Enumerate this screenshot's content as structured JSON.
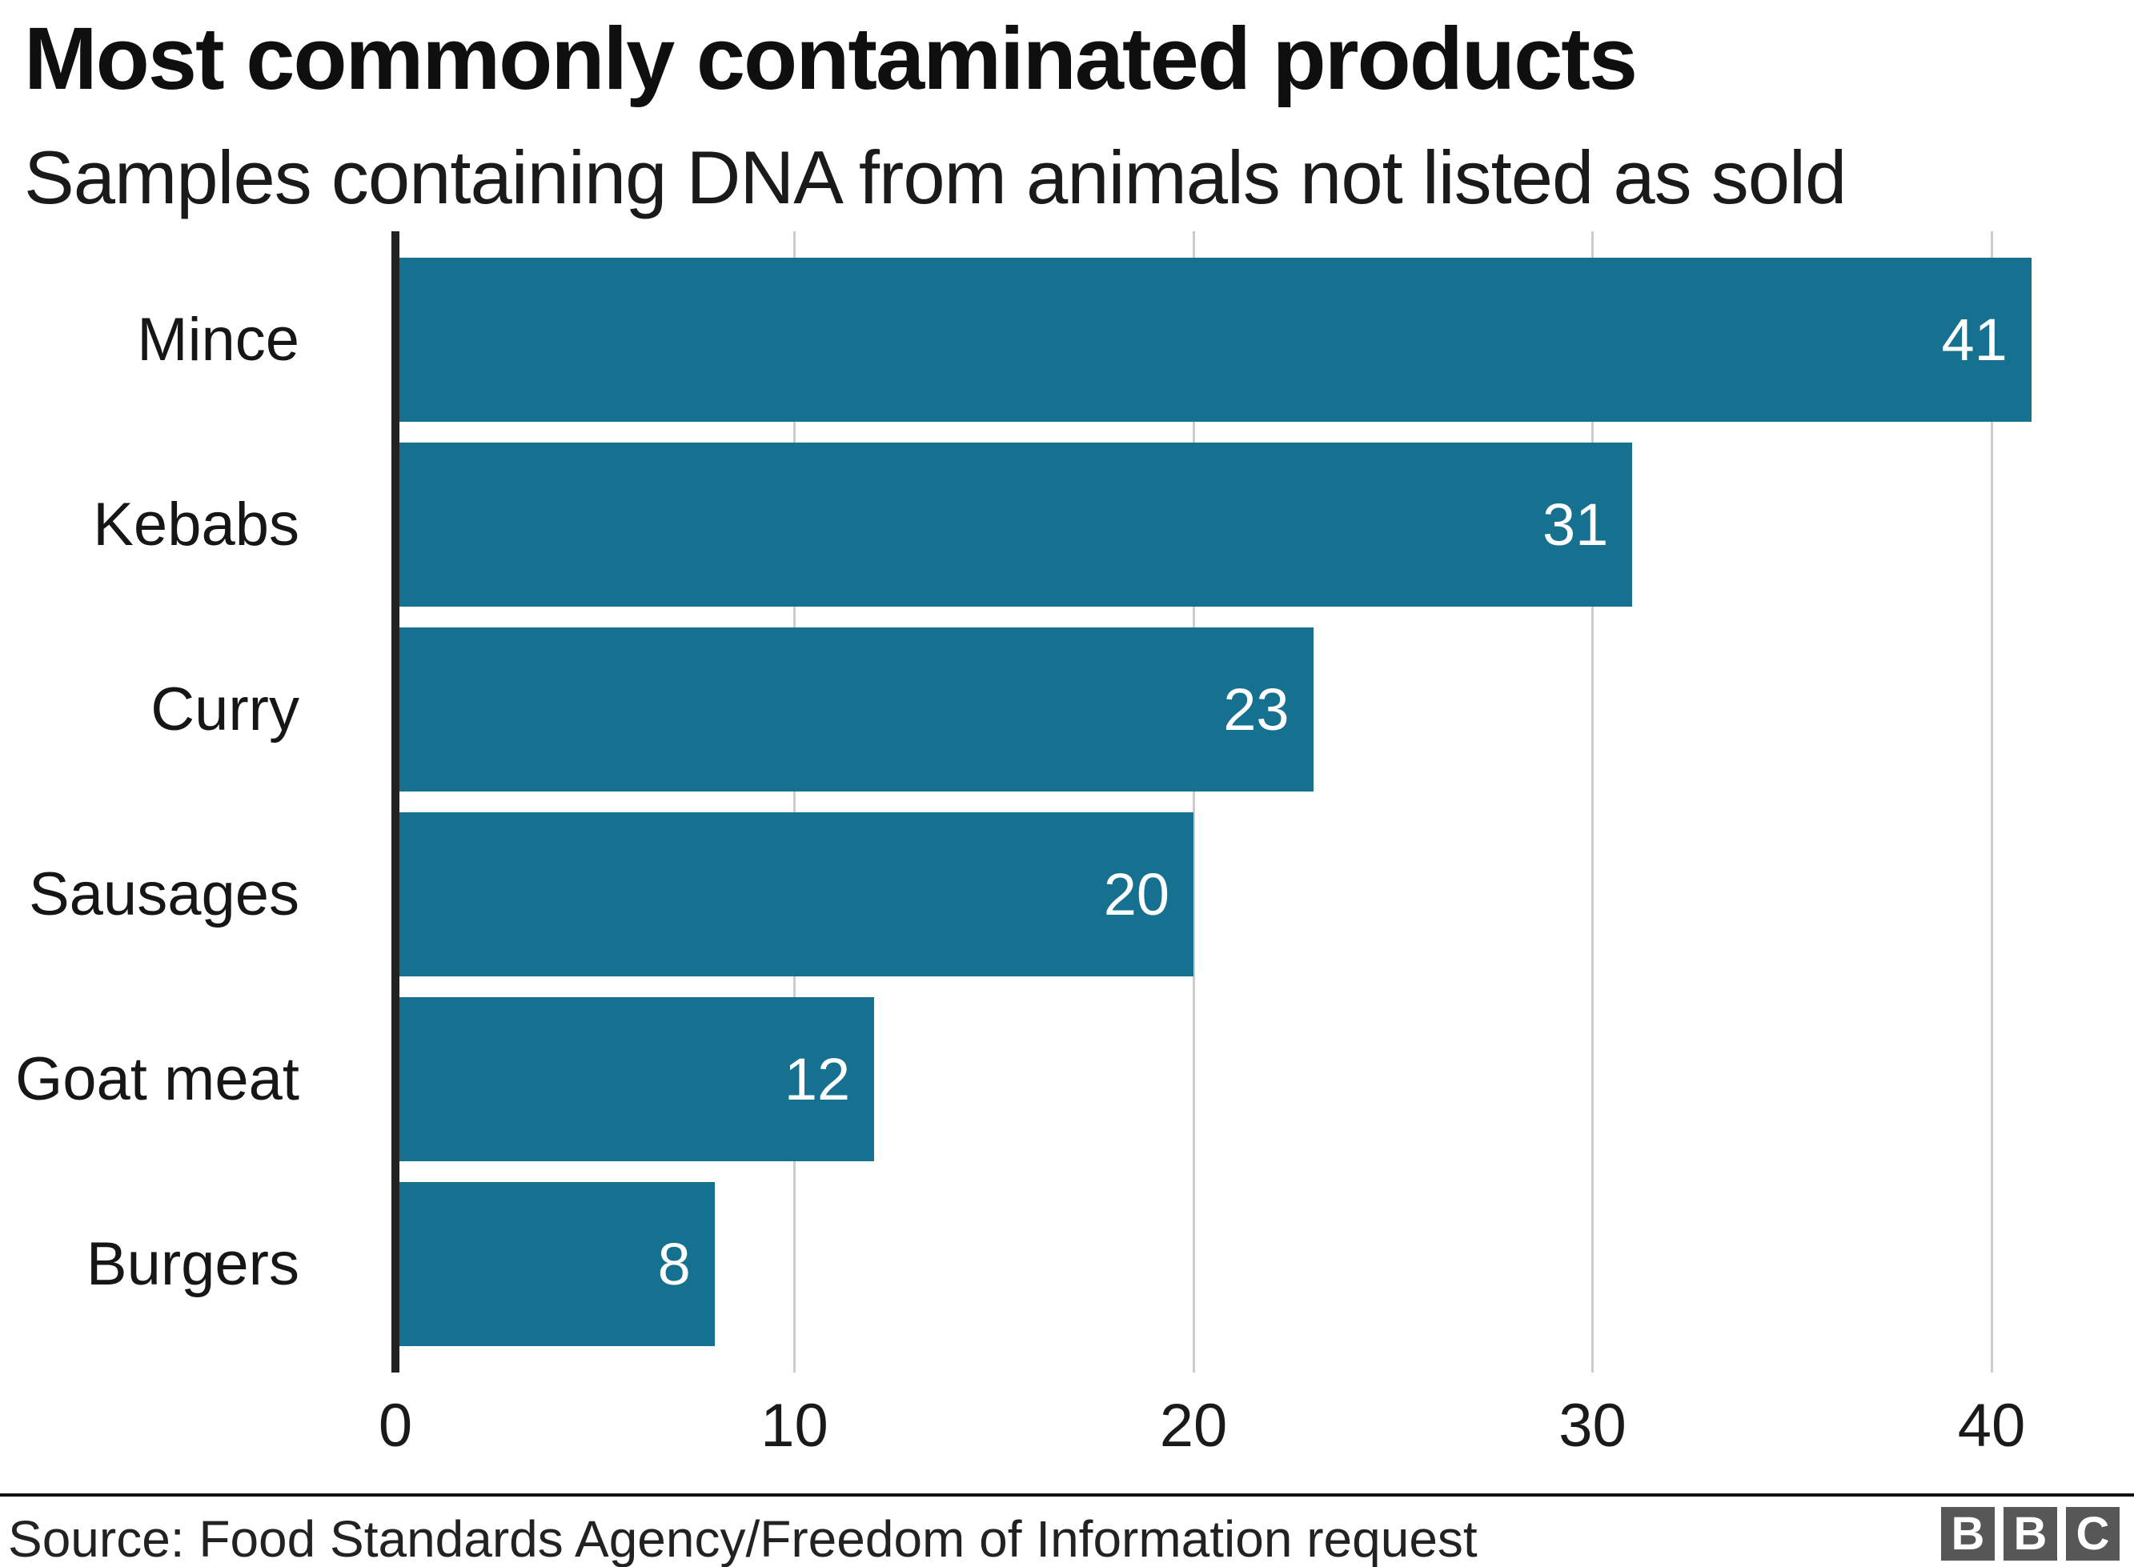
{
  "header": {
    "title": "Most commonly contaminated products",
    "subtitle": "Samples containing DNA from animals not listed as sold"
  },
  "chart_data": {
    "type": "bar",
    "orientation": "horizontal",
    "title": "Most commonly contaminated products",
    "subtitle": "Samples containing DNA from animals not listed as sold",
    "categories": [
      "Mince",
      "Kebabs",
      "Curry",
      "Sausages",
      "Goat meat",
      "Burgers"
    ],
    "values": [
      41,
      31,
      23,
      20,
      12,
      8
    ],
    "value_labels": [
      "41",
      "31",
      "23",
      "20",
      "12",
      "8"
    ],
    "xlabel": "",
    "ylabel": "",
    "xlim": [
      0,
      43.6
    ],
    "x_ticks": [
      0,
      10,
      20,
      30,
      40
    ],
    "grid": "vertical-gridlines-on",
    "legend": "none",
    "bar_color": "#16708F",
    "value_label_color": "#ffffff",
    "gridline_color": "#cccccc",
    "axis_line_color": "#222222"
  },
  "footer": {
    "source": "Source: Food Standards Agency/Freedom of Information request",
    "logo_letters": [
      "B",
      "B",
      "C"
    ]
  }
}
